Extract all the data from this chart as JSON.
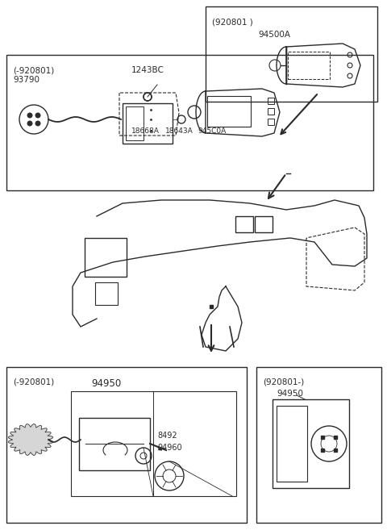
{
  "bg_color": "#ffffff",
  "line_color": "#2a2a2a",
  "fig_w": 4.8,
  "fig_h": 6.57,
  "dpi": 100,
  "top_right_box": {
    "label1": "(920801 )",
    "label2": "94500A"
  },
  "top_main_box": {
    "label1": "(-920801)",
    "label2": "93790",
    "label3": "1243BC",
    "label4": "18668A18643A945C0A"
  },
  "bot_left_box": {
    "label1": "(-920801)",
    "label2": "94950",
    "label3": "8492",
    "label4": "94960"
  },
  "bot_right_box": {
    "label1": "(920801-)",
    "label2": "94950"
  }
}
